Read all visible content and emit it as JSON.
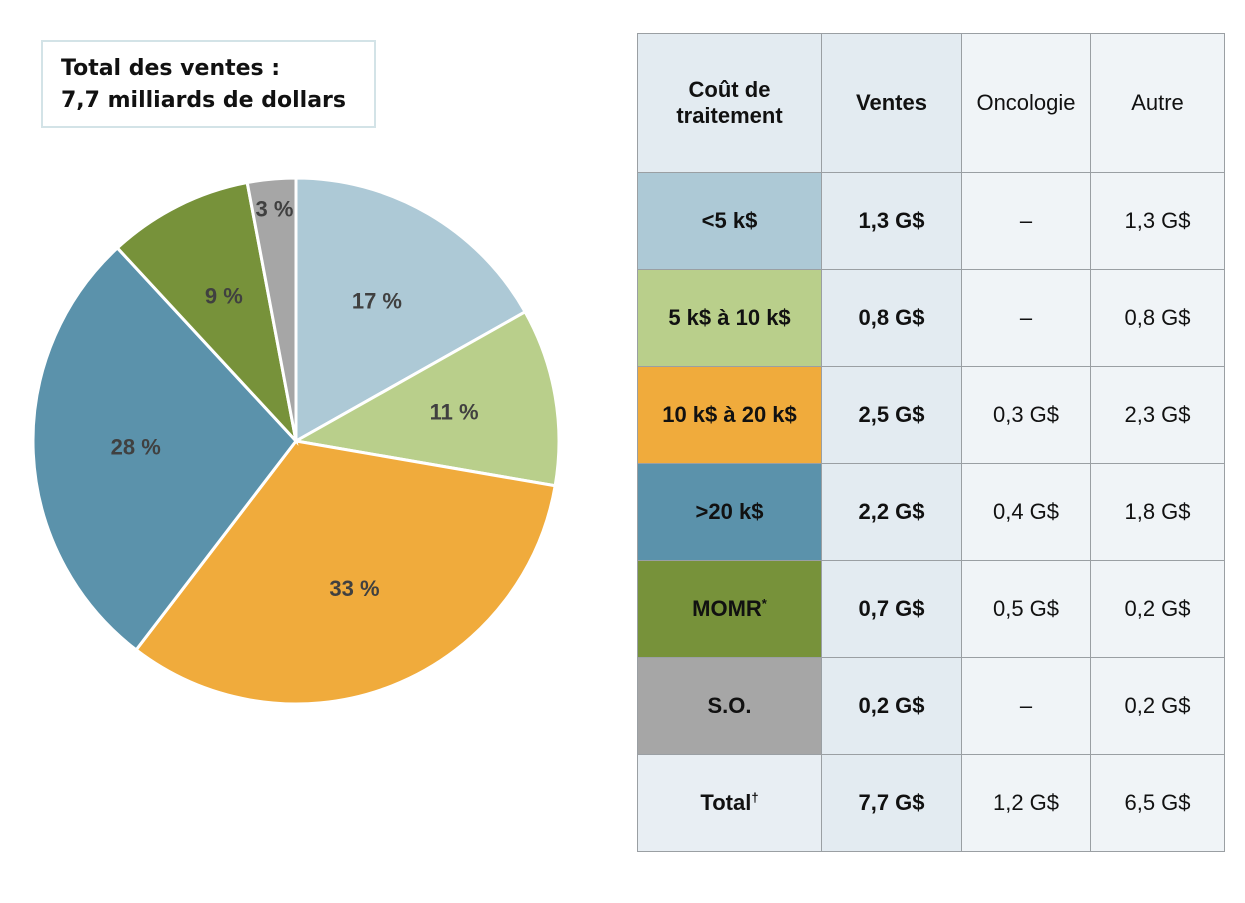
{
  "chart_data": {
    "type": "pie",
    "title": "Total des ventes :",
    "subtitle": "7,7 milliards de dollars",
    "values": [
      17,
      11,
      33,
      28,
      9,
      3
    ],
    "value_labels": [
      "17 %",
      "11 %",
      "33 %",
      "28 %",
      "9 %",
      "3 %"
    ],
    "colors": [
      "#adc9d6",
      "#b9cf8b",
      "#f0ab3c",
      "#5b92ab",
      "#77923a",
      "#a6a6a6"
    ]
  },
  "table": {
    "header": [
      "Coût de traitement",
      "Ventes",
      "Oncologie",
      "Autre"
    ],
    "rows": [
      {
        "label": "<5 k$",
        "cells": [
          "1,3 G$",
          "–",
          "1,3 G$"
        ]
      },
      {
        "label": "5 k$ à 10 k$",
        "cells": [
          "0,8 G$",
          "–",
          "0,8 G$"
        ]
      },
      {
        "label": "10 k$ à 20 k$",
        "cells": [
          "2,5 G$",
          "0,3 G$",
          "2,3 G$"
        ]
      },
      {
        "label": ">20 k$",
        "cells": [
          "2,2 G$",
          "0,4 G$",
          "1,8 G$"
        ]
      },
      {
        "label": "MOMR",
        "note": "*",
        "cells": [
          "0,7 G$",
          "0,5 G$",
          "0,2 G$"
        ]
      },
      {
        "label": "S.O.",
        "cells": [
          "0,2 G$",
          "–",
          "0,2 G$"
        ]
      },
      {
        "label": "Total",
        "note": "†",
        "cells": [
          "7,7 G$",
          "1,2 G$",
          "6,5 G$"
        ]
      }
    ]
  }
}
